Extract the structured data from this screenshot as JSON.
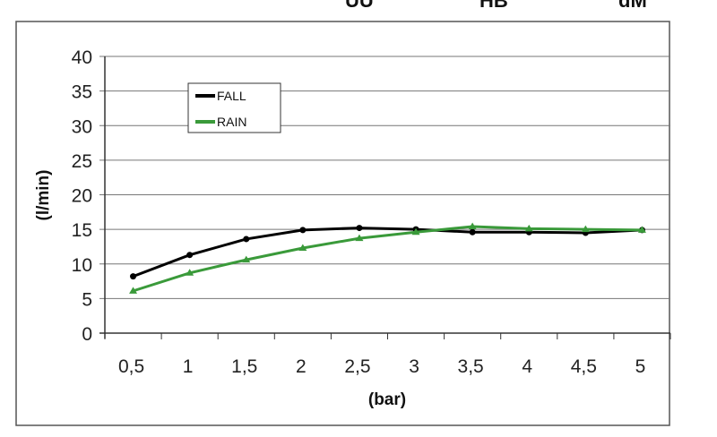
{
  "header_fragments": [
    "UU",
    "HB",
    "dM"
  ],
  "chart_data": {
    "type": "line",
    "title": "",
    "xlabel": "(bar)",
    "ylabel": "(l/min)",
    "categories": [
      "0,5",
      "1",
      "1,5",
      "2",
      "2,5",
      "3",
      "3,5",
      "4",
      "4,5",
      "5"
    ],
    "ylim": [
      0,
      40
    ],
    "yticks": [
      0,
      5,
      10,
      15,
      20,
      25,
      30,
      35,
      40
    ],
    "grid": true,
    "legend_placement": "top-left",
    "series": [
      {
        "name": "FALL",
        "color": "#000000",
        "values": [
          8.2,
          11.3,
          13.6,
          14.9,
          15.2,
          15.0,
          14.6,
          14.6,
          14.5,
          14.9
        ]
      },
      {
        "name": "RAIN",
        "color": "#3a9a3a",
        "values": [
          6.1,
          8.7,
          10.6,
          12.3,
          13.7,
          14.6,
          15.4,
          15.1,
          15.0,
          14.9
        ]
      }
    ]
  }
}
